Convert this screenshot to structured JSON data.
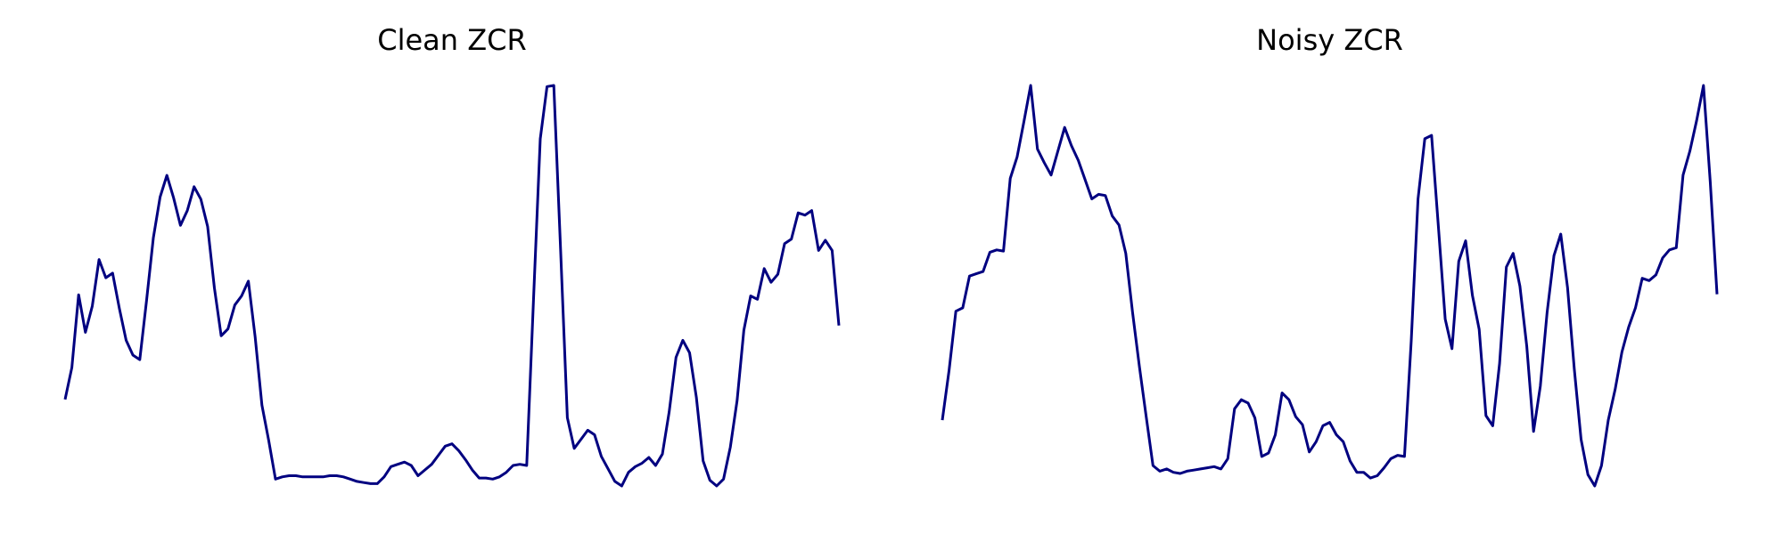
{
  "chart_data": [
    {
      "type": "line",
      "title": "Clean ZCR",
      "color": "#000080",
      "values": [
        78,
        106,
        170,
        137,
        160,
        201,
        185,
        189,
        158,
        130,
        117,
        113,
        165,
        220,
        256,
        275,
        255,
        231,
        244,
        265,
        254,
        230,
        176,
        134,
        140,
        161,
        169,
        182,
        133,
        73,
        42,
        8,
        10,
        11,
        11,
        10,
        10,
        10,
        10,
        11,
        11,
        10,
        8,
        6,
        5,
        4,
        4,
        10,
        19,
        21,
        23,
        20,
        11,
        16,
        21,
        29,
        37,
        39,
        33,
        25,
        16,
        9,
        9,
        8,
        10,
        14,
        20,
        21,
        20,
        165,
        307,
        353,
        354,
        210,
        62,
        35,
        43,
        51,
        47,
        28,
        17,
        6,
        2,
        14,
        19,
        22,
        27,
        20,
        30,
        67,
        115,
        130,
        119,
        80,
        24,
        7,
        2,
        8,
        36,
        77,
        139,
        169,
        166,
        193,
        181,
        188,
        215,
        219,
        242,
        240,
        244,
        209,
        218,
        209,
        143
      ]
    },
    {
      "type": "line",
      "title": "Noisy ZCR",
      "color": "#000080",
      "values": [
        60,
        104,
        156,
        159,
        187,
        189,
        191,
        208,
        210,
        209,
        273,
        292,
        323,
        355,
        299,
        287,
        276,
        297,
        318,
        302,
        289,
        272,
        255,
        259,
        258,
        240,
        232,
        207,
        155,
        107,
        63,
        20,
        15,
        17,
        14,
        13,
        15,
        16,
        17,
        18,
        19,
        17,
        26,
        70,
        78,
        75,
        62,
        28,
        31,
        47,
        84,
        78,
        63,
        56,
        32,
        41,
        55,
        58,
        47,
        41,
        24,
        14,
        14,
        9,
        11,
        18,
        26,
        29,
        28,
        130,
        255,
        308,
        311,
        230,
        149,
        123,
        200,
        218,
        170,
        140,
        64,
        55,
        110,
        195,
        207,
        178,
        125,
        50,
        90,
        155,
        205,
        224,
        177,
        105,
        43,
        12,
        2,
        20,
        60,
        87,
        120,
        142,
        159,
        185,
        183,
        188,
        203,
        210,
        212,
        276,
        297,
        324,
        355,
        270,
        171
      ]
    }
  ]
}
